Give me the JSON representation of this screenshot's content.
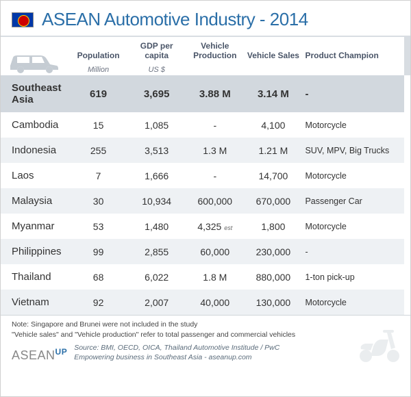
{
  "title": "ASEAN Automotive Industry - 2014",
  "columns": {
    "population": {
      "label": "Population",
      "sub": "Million"
    },
    "gdp": {
      "label": "GDP per capita",
      "sub": "US $"
    },
    "production": {
      "label": "Vehicle Production",
      "sub": ""
    },
    "sales": {
      "label": "Vehicle Sales",
      "sub": ""
    },
    "champion": {
      "label": "Product Champion",
      "sub": ""
    }
  },
  "rows": [
    {
      "country": "Southeast Asia",
      "pop": "619",
      "gdp": "3,695",
      "prod": "3.88 M",
      "sales": "3.14 M",
      "product": "-",
      "sea": true
    },
    {
      "country": "Cambodia",
      "pop": "15",
      "gdp": "1,085",
      "prod": "-",
      "sales": "4,100",
      "product": "Motorcycle"
    },
    {
      "country": "Indonesia",
      "pop": "255",
      "gdp": "3,513",
      "prod": "1.3 M",
      "sales": "1.21 M",
      "product": "SUV, MPV, Big Trucks"
    },
    {
      "country": "Laos",
      "pop": "7",
      "gdp": "1,666",
      "prod": "-",
      "sales": "14,700",
      "product": "Motorcycle"
    },
    {
      "country": "Malaysia",
      "pop": "30",
      "gdp": "10,934",
      "prod": "600,000",
      "sales": "670,000",
      "product": "Passenger Car"
    },
    {
      "country": "Myanmar",
      "pop": "53",
      "gdp": "1,480",
      "prod": "4,325",
      "prod_est": "est",
      "sales": "1,800",
      "product": "Motorcycle"
    },
    {
      "country": "Philippines",
      "pop": "99",
      "gdp": "2,855",
      "prod": "60,000",
      "sales": "230,000",
      "product": "-"
    },
    {
      "country": "Thailand",
      "pop": "68",
      "gdp": "6,022",
      "prod": "1.8 M",
      "sales": "880,000",
      "product": "1-ton pick-up"
    },
    {
      "country": "Vietnam",
      "pop": "92",
      "gdp": "2,007",
      "prod": "40,000",
      "sales": "130,000",
      "product": "Motorcycle"
    }
  ],
  "note1": "Note: Singapore and Brunei were not included in the study",
  "note2": "\"Vehicle sales\" and \"Vehicle production\" refer to total passenger and commercial vehicles",
  "source": "Source: BMI, OECD, OICA, Thailand Automotive Institude / PwC",
  "tagline": "Empowering business in Southeast Asia - aseanup.com",
  "logo": {
    "main": "ASEAN",
    "up": "UP"
  },
  "colors": {
    "title": "#2b6fa8",
    "stripe": "#eef1f4",
    "sea_row": "#d2d8de",
    "border": "#d0d5da",
    "icon_fill": "#c5ccd3"
  }
}
